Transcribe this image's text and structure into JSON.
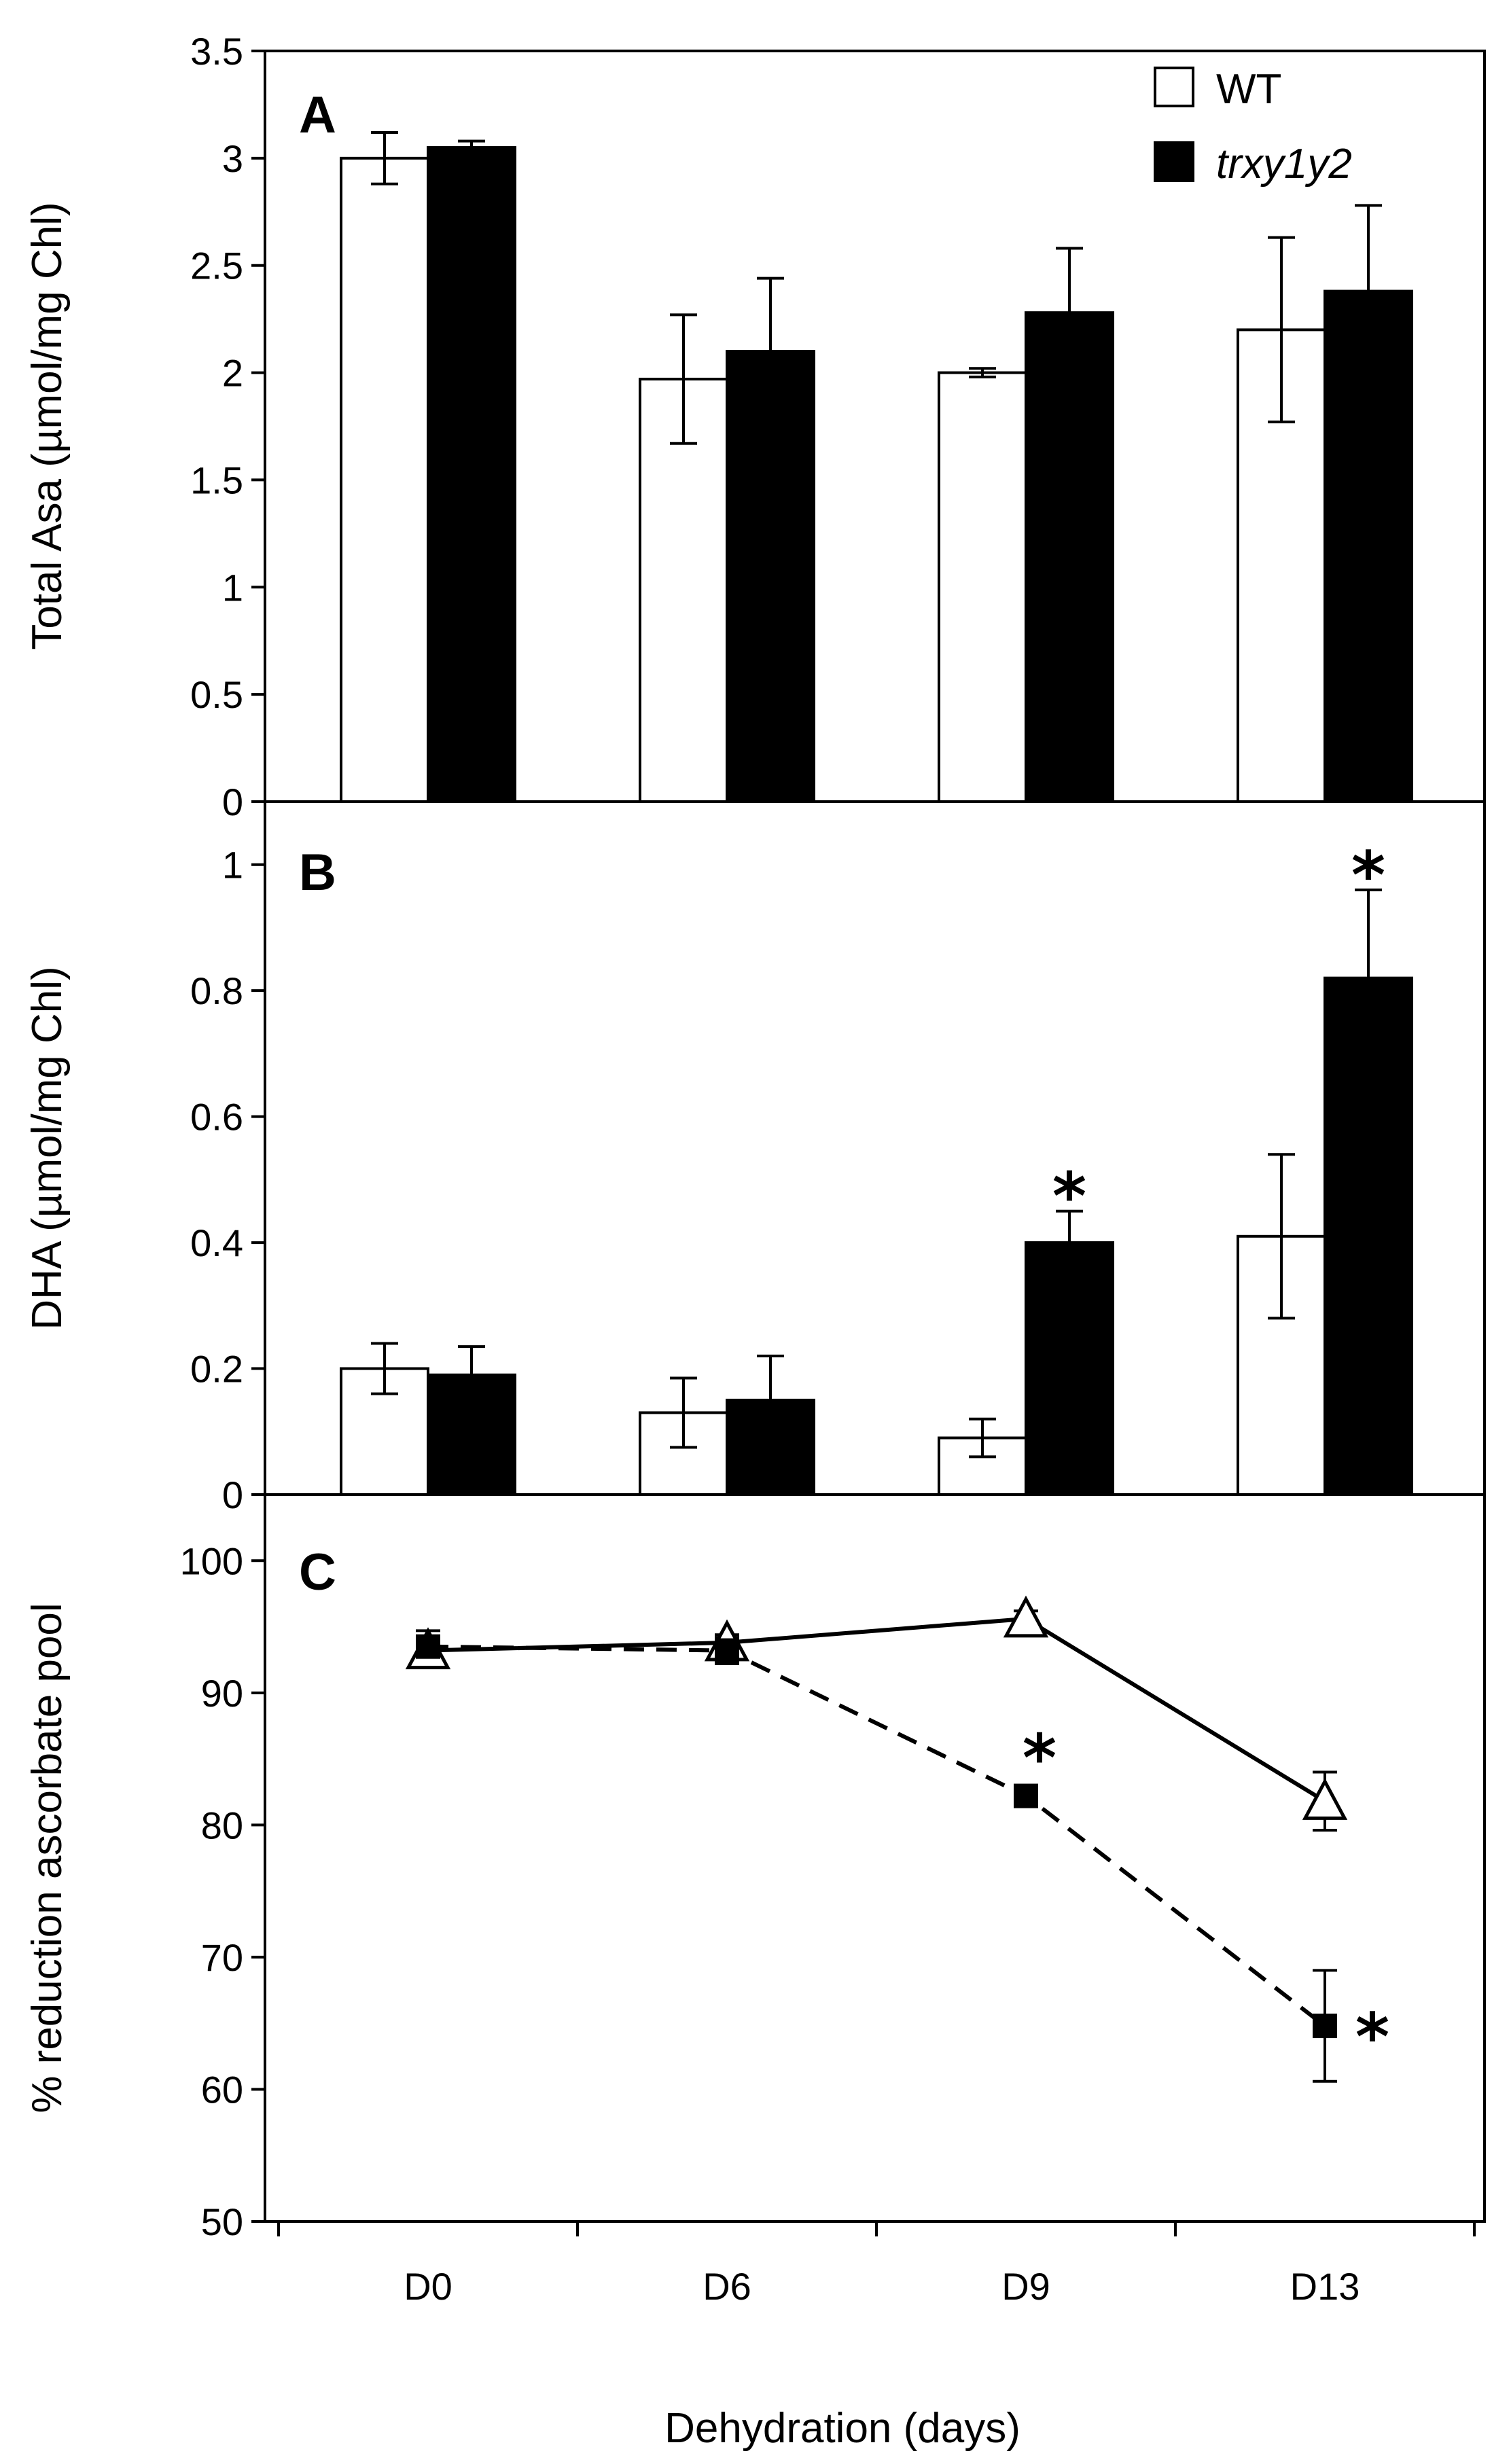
{
  "chart_data": [
    {
      "panel": "A",
      "type": "bar",
      "ylabel": "Total Asa (µmol/mg Chl)",
      "ylim": [
        0,
        3.5
      ],
      "yticks": [
        "0",
        "0.5",
        "1",
        "1.5",
        "2",
        "2.5",
        "3",
        "3.5"
      ],
      "categories": [
        "D0",
        "D6",
        "D9",
        "D13"
      ],
      "series": [
        {
          "name": "WT",
          "fill": "#ffffff",
          "values": [
            3.0,
            1.97,
            2.0,
            2.2
          ],
          "errors": [
            0.12,
            0.3,
            0.02,
            0.43
          ]
        },
        {
          "name": "trxy1y2",
          "fill": "#000000",
          "values": [
            3.05,
            2.1,
            2.28,
            2.38
          ],
          "errors": [
            0.03,
            0.34,
            0.3,
            0.4
          ]
        }
      ],
      "significance": [],
      "legend": {
        "placement": "top-right",
        "entries": [
          "WT",
          "trxy1y2"
        ]
      }
    },
    {
      "panel": "B",
      "type": "bar",
      "ylabel": "DHA (µmol/mg Chl)",
      "ylim": [
        0,
        1.1
      ],
      "yticks": [
        "0",
        "0.2",
        "0.4",
        "0.6",
        "0.8",
        "1"
      ],
      "categories": [
        "D0",
        "D6",
        "D9",
        "D13"
      ],
      "series": [
        {
          "name": "WT",
          "fill": "#ffffff",
          "values": [
            0.2,
            0.13,
            0.09,
            0.41
          ],
          "errors": [
            0.04,
            0.055,
            0.03,
            0.13
          ]
        },
        {
          "name": "trxy1y2",
          "fill": "#000000",
          "values": [
            0.19,
            0.15,
            0.4,
            0.82
          ],
          "errors": [
            0.045,
            0.07,
            0.05,
            0.14
          ]
        }
      ],
      "significance": [
        {
          "series": "trxy1y2",
          "category": "D9",
          "label": "*"
        },
        {
          "series": "trxy1y2",
          "category": "D13",
          "label": "*"
        }
      ]
    },
    {
      "panel": "C",
      "type": "line",
      "ylabel": "% reduction ascorbate pool",
      "xlabel": "Dehydration (days)",
      "ylim": [
        50,
        105
      ],
      "yticks": [
        "50",
        "60",
        "70",
        "80",
        "90",
        "100"
      ],
      "categories": [
        "D0",
        "D6",
        "D9",
        "D13"
      ],
      "series": [
        {
          "name": "WT",
          "marker": "open-triangle",
          "line": "solid",
          "values": [
            93.2,
            93.8,
            95.6,
            81.8
          ],
          "errors": [
            0.8,
            0.6,
            0.6,
            2.2
          ]
        },
        {
          "name": "trxy1y2",
          "marker": "filled-square",
          "line": "dashed",
          "values": [
            93.5,
            93.2,
            82.2,
            64.8
          ],
          "errors": [
            1.2,
            1.0,
            0.5,
            4.2
          ]
        }
      ],
      "significance": [
        {
          "series": "trxy1y2",
          "category": "D9",
          "label": "*"
        },
        {
          "series": "trxy1y2",
          "category": "D13",
          "label": "*"
        }
      ]
    }
  ]
}
